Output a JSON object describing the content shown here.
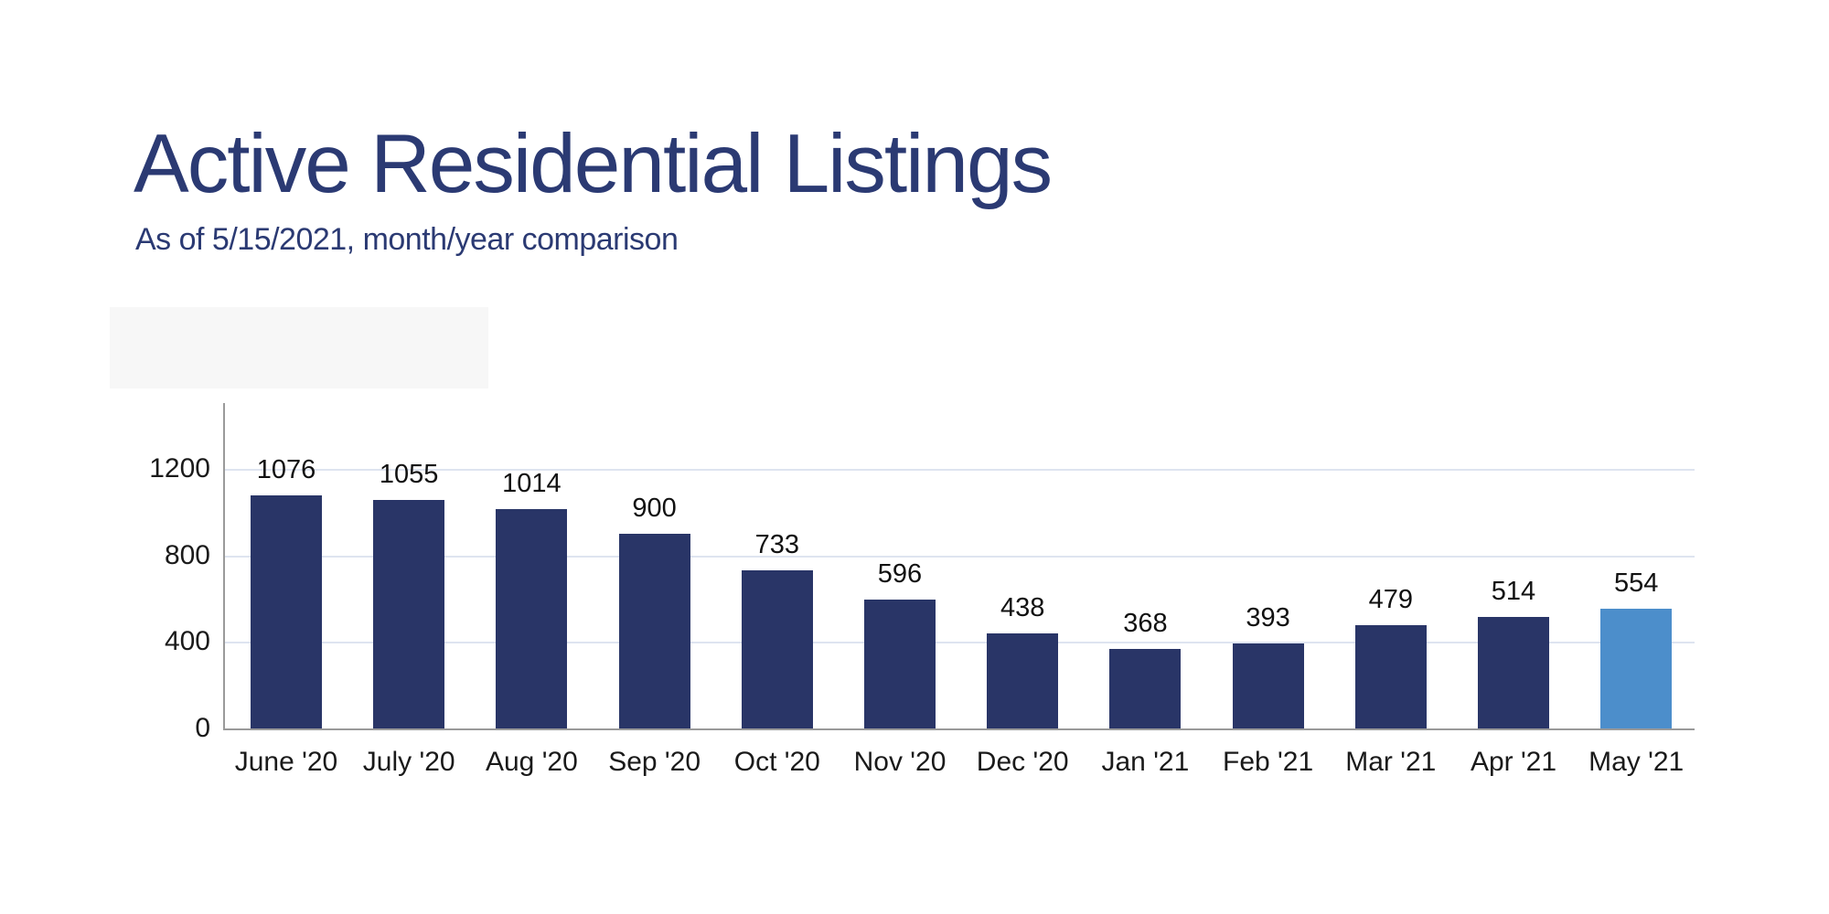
{
  "header": {
    "title": "Active Residential Listings",
    "subtitle": "As of 5/15/2021, month/year comparison",
    "title_color": "#2b3a73"
  },
  "chart_data": {
    "type": "bar",
    "title": "Active Residential Listings",
    "subtitle": "As of 5/15/2021, month/year comparison",
    "categories": [
      "June '20",
      "July '20",
      "Aug '20",
      "Sep '20",
      "Oct '20",
      "Nov '20",
      "Dec '20",
      "Jan '21",
      "Feb '21",
      "Mar '21",
      "Apr '21",
      "May '21"
    ],
    "values": [
      1076,
      1055,
      1014,
      900,
      733,
      596,
      438,
      368,
      393,
      479,
      514,
      554
    ],
    "xlabel": "",
    "ylabel": "",
    "y_ticks": [
      0,
      400,
      800,
      1200
    ],
    "ylim": [
      0,
      1500
    ],
    "grid": true,
    "value_labels_shown": true,
    "legend": "none",
    "colors": {
      "bar_default": "#293567",
      "bar_highlight": "#4c8ecb",
      "highlight_index": 11,
      "axis_line": "#9a9a9a",
      "gridline": "#dee4f0",
      "tick_label": "#1a1a1a",
      "value_label": "#111111"
    }
  }
}
